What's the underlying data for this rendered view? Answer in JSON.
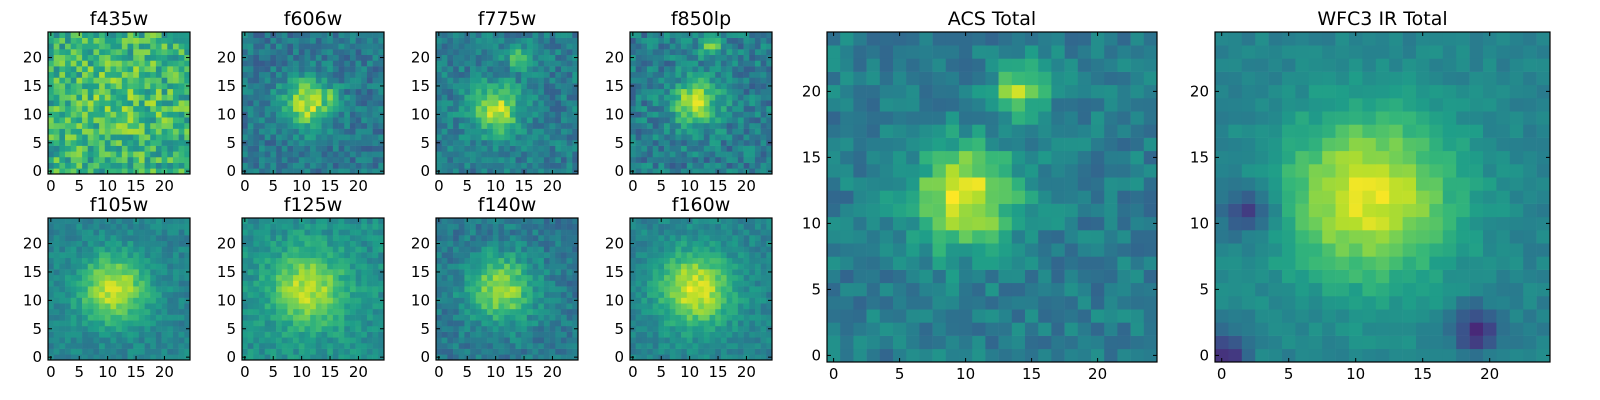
{
  "chart_data": [
    {
      "type": "heatmap",
      "title": "f435w",
      "xticks": [
        "0",
        "5",
        "10",
        "15",
        "20"
      ],
      "yticks": [
        "0",
        "5",
        "10",
        "15",
        "20"
      ],
      "xlim": [
        -0.5,
        24.5
      ],
      "ylim": [
        -0.5,
        24.5
      ],
      "colormap": "viridis",
      "grid": false,
      "z_summary": {
        "grid_size": [
          25,
          25
        ],
        "peak_xy": [
          12,
          12
        ],
        "sigma": 7.0,
        "peak_level": 0.72,
        "background": 0.62,
        "noise": 0.2
      }
    },
    {
      "type": "heatmap",
      "title": "f606w",
      "xticks": [
        "0",
        "5",
        "10",
        "15",
        "20"
      ],
      "yticks": [
        "0",
        "5",
        "10",
        "15",
        "20"
      ],
      "xlim": [
        -0.5,
        24.5
      ],
      "ylim": [
        -0.5,
        24.5
      ],
      "colormap": "viridis",
      "grid": false,
      "z_summary": {
        "grid_size": [
          25,
          25
        ],
        "peak_xy": [
          11,
          12
        ],
        "sigma": 3.0,
        "peak_level": 0.92,
        "background": 0.4,
        "noise": 0.12,
        "secondary_peak_xy": [
          15,
          13
        ]
      }
    },
    {
      "type": "heatmap",
      "title": "f775w",
      "xticks": [
        "0",
        "5",
        "10",
        "15",
        "20"
      ],
      "yticks": [
        "0",
        "5",
        "10",
        "15",
        "20"
      ],
      "xlim": [
        -0.5,
        24.5
      ],
      "ylim": [
        -0.5,
        24.5
      ],
      "colormap": "viridis",
      "grid": false,
      "z_summary": {
        "grid_size": [
          25,
          25
        ],
        "peak_xy": [
          10,
          11
        ],
        "sigma": 3.0,
        "peak_level": 0.92,
        "background": 0.42,
        "noise": 0.12,
        "secondary_peak_xy": [
          14,
          20
        ]
      }
    },
    {
      "type": "heatmap",
      "title": "f850lp",
      "xticks": [
        "0",
        "5",
        "10",
        "15",
        "20"
      ],
      "yticks": [
        "0",
        "5",
        "10",
        "15",
        "20"
      ],
      "xlim": [
        -0.5,
        24.5
      ],
      "ylim": [
        -0.5,
        24.5
      ],
      "colormap": "viridis",
      "grid": false,
      "z_summary": {
        "grid_size": [
          25,
          25
        ],
        "peak_xy": [
          11,
          12
        ],
        "sigma": 3.0,
        "peak_level": 0.88,
        "background": 0.42,
        "noise": 0.14,
        "secondary_peak_xy": [
          14,
          22
        ]
      }
    },
    {
      "type": "heatmap",
      "title": "f105w",
      "xticks": [
        "0",
        "5",
        "10",
        "15",
        "20"
      ],
      "yticks": [
        "0",
        "5",
        "10",
        "15",
        "20"
      ],
      "xlim": [
        -0.5,
        24.5
      ],
      "ylim": [
        -0.5,
        24.5
      ],
      "colormap": "viridis",
      "grid": false,
      "z_summary": {
        "grid_size": [
          25,
          25
        ],
        "peak_xy": [
          11,
          12
        ],
        "sigma": 4.2,
        "peak_level": 0.92,
        "background": 0.45,
        "noise": 0.08
      }
    },
    {
      "type": "heatmap",
      "title": "f125w",
      "xticks": [
        "0",
        "5",
        "10",
        "15",
        "20"
      ],
      "yticks": [
        "0",
        "5",
        "10",
        "15",
        "20"
      ],
      "xlim": [
        -0.5,
        24.5
      ],
      "ylim": [
        -0.5,
        24.5
      ],
      "colormap": "viridis",
      "grid": false,
      "z_summary": {
        "grid_size": [
          25,
          25
        ],
        "peak_xy": [
          11,
          12
        ],
        "sigma": 4.5,
        "peak_level": 0.9,
        "background": 0.5,
        "noise": 0.09
      }
    },
    {
      "type": "heatmap",
      "title": "f140w",
      "xticks": [
        "0",
        "5",
        "10",
        "15",
        "20"
      ],
      "yticks": [
        "0",
        "5",
        "10",
        "15",
        "20"
      ],
      "xlim": [
        -0.5,
        24.5
      ],
      "ylim": [
        -0.5,
        24.5
      ],
      "colormap": "viridis",
      "grid": false,
      "z_summary": {
        "grid_size": [
          25,
          25
        ],
        "peak_xy": [
          11,
          12
        ],
        "sigma": 4.2,
        "peak_level": 0.85,
        "background": 0.4,
        "noise": 0.1
      }
    },
    {
      "type": "heatmap",
      "title": "f160w",
      "xticks": [
        "0",
        "5",
        "10",
        "15",
        "20"
      ],
      "yticks": [
        "0",
        "5",
        "10",
        "15",
        "20"
      ],
      "xlim": [
        -0.5,
        24.5
      ],
      "ylim": [
        -0.5,
        24.5
      ],
      "colormap": "viridis",
      "grid": false,
      "z_summary": {
        "grid_size": [
          25,
          25
        ],
        "peak_xy": [
          11,
          12
        ],
        "sigma": 4.5,
        "peak_level": 0.95,
        "background": 0.45,
        "noise": 0.08
      }
    },
    {
      "type": "heatmap",
      "title": "ACS Total",
      "xticks": [
        "0",
        "5",
        "10",
        "15",
        "20"
      ],
      "yticks": [
        "0",
        "5",
        "10",
        "15",
        "20"
      ],
      "xlim": [
        -0.5,
        24.5
      ],
      "ylim": [
        -0.5,
        24.5
      ],
      "colormap": "viridis",
      "grid": false,
      "z_summary": {
        "grid_size": [
          25,
          25
        ],
        "peak_xy": [
          10,
          12
        ],
        "sigma": 2.8,
        "peak_level": 0.95,
        "background": 0.42,
        "noise": 0.1,
        "secondary_peak_xy": [
          14,
          20
        ]
      }
    },
    {
      "type": "heatmap",
      "title": "WFC3 IR Total",
      "xticks": [
        "0",
        "5",
        "10",
        "15",
        "20"
      ],
      "yticks": [
        "0",
        "5",
        "10",
        "15",
        "20"
      ],
      "xlim": [
        -0.5,
        24.5
      ],
      "ylim": [
        -0.5,
        24.5
      ],
      "colormap": "viridis",
      "grid": false,
      "z_summary": {
        "grid_size": [
          25,
          25
        ],
        "peak_xy": [
          11,
          12
        ],
        "sigma": 4.5,
        "peak_level": 0.96,
        "background": 0.45,
        "noise": 0.05,
        "dark_regions_xy": [
          [
            2,
            11
          ],
          [
            19,
            2
          ],
          [
            0,
            0
          ]
        ]
      }
    }
  ]
}
